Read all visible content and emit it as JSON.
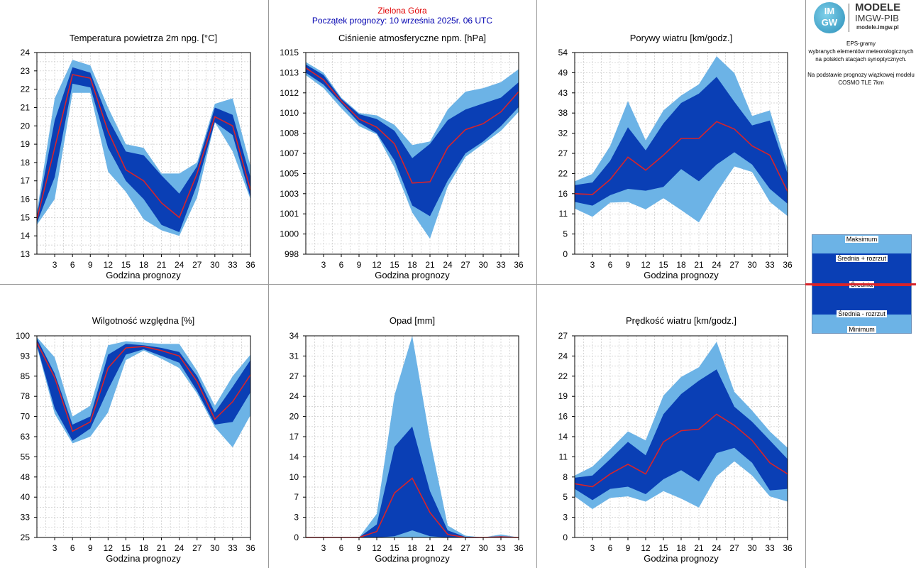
{
  "header": {
    "station": "Zielona Góra",
    "forecast_start": "Początek prognozy: 10 września 2025r. 06 UTC"
  },
  "logo": {
    "mark": "IM GW",
    "title": "MODELE",
    "subtitle": "IMGW-PIB",
    "url": "modele.imgw.pl"
  },
  "sidebar": {
    "lines": [
      "EPS-gramy",
      "wybranych elementów meteorologicznych",
      "na polskich stacjach  synoptycznych.",
      "",
      "Na podstawie prognozy wiązkowej modelu",
      "COSMO TLE 7km"
    ]
  },
  "legend": {
    "max": "Maksimum",
    "mean_plus": "Średnia + rozrzut",
    "mean": "Średnia",
    "mean_minus": "Średnia - rozrzut",
    "min": "Minimum"
  },
  "colors": {
    "outer_band": "#6cb3e6",
    "inner_band": "#0a3fb5",
    "mean_line": "#d8232a",
    "grid": "#c8c8c8"
  },
  "chart_data": [
    {
      "type": "area",
      "title": "Temperatura powietrza 2m npg. [°C]",
      "xlabel": "Godzina prognozy",
      "x": [
        0,
        3,
        6,
        9,
        12,
        15,
        18,
        21,
        24,
        27,
        30,
        33,
        36
      ],
      "x_ticks": [
        "3",
        "6",
        "9",
        "12",
        "15",
        "18",
        "21",
        "24",
        "27",
        "30",
        "33",
        "36"
      ],
      "ylim": [
        13,
        24
      ],
      "y_ticks": [
        "13",
        "14",
        "15",
        "16",
        "17",
        "18",
        "19",
        "20",
        "21",
        "22",
        "23",
        "24"
      ],
      "grid": true,
      "max": [
        15.3,
        21.5,
        23.6,
        23.3,
        21.0,
        19.0,
        18.8,
        17.4,
        17.4,
        18.0,
        21.2,
        21.5,
        17.8
      ],
      "mean_plus": [
        15.1,
        20.3,
        23.2,
        22.9,
        20.4,
        18.6,
        18.4,
        17.3,
        16.3,
        17.8,
        21.0,
        20.6,
        17.2
      ],
      "mean": [
        14.9,
        18.8,
        22.8,
        22.6,
        19.7,
        17.6,
        17.0,
        15.8,
        15.0,
        17.4,
        20.5,
        20.0,
        16.5
      ],
      "mean_minus": [
        14.7,
        17.2,
        22.3,
        22.1,
        18.8,
        17.0,
        16.0,
        14.6,
        14.2,
        16.8,
        20.2,
        19.5,
        16.1
      ],
      "min": [
        14.6,
        16.0,
        21.8,
        21.8,
        17.5,
        16.4,
        14.9,
        14.3,
        14.0,
        16.1,
        20.2,
        18.6,
        16.0
      ]
    },
    {
      "type": "area",
      "title": "Ciśnienie atmosferyczne npm. [hPa]",
      "xlabel": "Godzina prognozy",
      "x": [
        0,
        3,
        6,
        9,
        12,
        15,
        18,
        21,
        24,
        27,
        30,
        33,
        36
      ],
      "x_ticks": [
        "3",
        "6",
        "9",
        "12",
        "15",
        "18",
        "21",
        "24",
        "27",
        "30",
        "33",
        "36"
      ],
      "ylim": [
        998,
        1015
      ],
      "y_ticks": [
        "998",
        "1000",
        "1001",
        "1003",
        "1005",
        "1007",
        "1008",
        "1010",
        "1012",
        "1013",
        "1015"
      ],
      "grid": true,
      "max": [
        1014.2,
        1013.3,
        1011.2,
        1009.9,
        1009.7,
        1008.9,
        1007.2,
        1007.5,
        1010.2,
        1011.7,
        1012.0,
        1012.5,
        1013.6
      ],
      "mean_plus": [
        1014.0,
        1013.1,
        1011.1,
        1009.8,
        1009.4,
        1008.4,
        1006.1,
        1007.3,
        1009.3,
        1010.2,
        1010.7,
        1011.2,
        1012.5
      ],
      "mean": [
        1013.7,
        1012.7,
        1010.9,
        1009.4,
        1008.7,
        1007.3,
        1004.0,
        1004.1,
        1007.0,
        1008.5,
        1009.0,
        1010.0,
        1011.7
      ],
      "mean_minus": [
        1013.3,
        1012.3,
        1010.7,
        1009.1,
        1008.2,
        1005.9,
        1002.1,
        1001.2,
        1004.2,
        1006.5,
        1007.5,
        1008.8,
        1010.4
      ],
      "min": [
        1013.1,
        1012.0,
        1010.3,
        1008.8,
        1008.1,
        1005.3,
        1001.5,
        999.3,
        1003.7,
        1006.2,
        1007.3,
        1008.4,
        1010.0
      ]
    },
    {
      "type": "area",
      "title": "Porywy wiatru [km/godz.]",
      "xlabel": "Godzina prognozy",
      "x": [
        0,
        3,
        6,
        9,
        12,
        15,
        18,
        21,
        24,
        27,
        30,
        33,
        36
      ],
      "x_ticks": [
        "3",
        "6",
        "9",
        "12",
        "15",
        "18",
        "21",
        "24",
        "27",
        "30",
        "33",
        "36"
      ],
      "ylim": [
        0,
        54
      ],
      "y_ticks": [
        "0",
        "5",
        "11",
        "16",
        "22",
        "27",
        "32",
        "38",
        "43",
        "49",
        "54"
      ],
      "grid": true,
      "max": [
        19.5,
        21.5,
        29.0,
        41.0,
        30.5,
        38.5,
        42.5,
        45.5,
        53.0,
        48.5,
        37.0,
        38.5,
        23.0
      ],
      "mean_plus": [
        18.5,
        19.2,
        25.0,
        34.0,
        27.8,
        35.0,
        40.5,
        43.0,
        47.5,
        40.8,
        34.5,
        35.8,
        21.5
      ],
      "mean": [
        16.2,
        16.0,
        20.0,
        26.0,
        22.5,
        26.5,
        31.0,
        31.0,
        35.5,
        33.5,
        29.0,
        26.5,
        16.8
      ],
      "mean_minus": [
        14.0,
        13.0,
        15.8,
        17.5,
        17.0,
        18.0,
        22.8,
        19.5,
        24.0,
        27.3,
        24.0,
        17.5,
        13.5
      ],
      "min": [
        12.2,
        10.0,
        13.8,
        14.0,
        12.0,
        15.0,
        11.8,
        8.5,
        16.5,
        23.5,
        22.0,
        14.0,
        10.2
      ]
    },
    {
      "type": "area",
      "title": "Wilgotność względna [%]",
      "xlabel": "Godzina prognozy",
      "x": [
        0,
        3,
        6,
        9,
        12,
        15,
        18,
        21,
        24,
        27,
        30,
        33,
        36
      ],
      "x_ticks": [
        "3",
        "6",
        "9",
        "12",
        "15",
        "18",
        "21",
        "24",
        "27",
        "30",
        "33",
        "36"
      ],
      "ylim": [
        25,
        100
      ],
      "y_ticks": [
        "25",
        "33",
        "40",
        "48",
        "55",
        "63",
        "70",
        "78",
        "85",
        "93",
        "100"
      ],
      "grid": true,
      "max": [
        99.5,
        92.0,
        70.0,
        74.0,
        96.5,
        98.0,
        97.5,
        97.0,
        97.0,
        87.0,
        74.0,
        85.0,
        93.0
      ],
      "mean_plus": [
        99.0,
        86.0,
        67.0,
        70.0,
        93.0,
        97.0,
        96.5,
        95.5,
        94.0,
        85.0,
        71.5,
        81.0,
        91.0
      ],
      "mean": [
        97.5,
        84.5,
        64.5,
        68.0,
        88.0,
        95.5,
        96.0,
        94.5,
        92.5,
        83.0,
        69.0,
        75.5,
        85.5
      ],
      "mean_minus": [
        96.5,
        73.0,
        61.0,
        65.5,
        80.0,
        93.0,
        95.0,
        92.5,
        90.0,
        79.5,
        67.0,
        68.0,
        79.0
      ],
      "min": [
        96.0,
        71.0,
        60.0,
        62.5,
        71.5,
        91.0,
        94.5,
        91.5,
        88.0,
        78.5,
        66.0,
        58.5,
        70.5
      ]
    },
    {
      "type": "area",
      "title": "Opad [mm]",
      "xlabel": "Godzina prognozy",
      "x": [
        0,
        3,
        6,
        9,
        12,
        15,
        18,
        21,
        24,
        27,
        30,
        33,
        36
      ],
      "x_ticks": [
        "3",
        "6",
        "9",
        "12",
        "15",
        "18",
        "21",
        "24",
        "27",
        "30",
        "33",
        "36"
      ],
      "ylim": [
        0,
        34
      ],
      "y_ticks": [
        "0",
        "3",
        "7",
        "10",
        "14",
        "17",
        "20",
        "24",
        "27",
        "31",
        "34"
      ],
      "grid": true,
      "max": [
        0,
        0,
        0,
        0,
        4.0,
        24.0,
        34.0,
        16.5,
        2.0,
        0.3,
        0,
        0.5,
        0
      ],
      "mean_plus": [
        0,
        0,
        0,
        0,
        2.2,
        15.3,
        18.7,
        7.8,
        1.2,
        0.1,
        0,
        0.2,
        0
      ],
      "mean": [
        0,
        0,
        0,
        0,
        1.0,
        7.5,
        10.0,
        4.2,
        0.5,
        0,
        0,
        0.1,
        0
      ],
      "mean_minus": [
        0,
        0,
        0,
        0,
        0,
        0.2,
        1.2,
        0.2,
        0,
        0,
        0,
        0,
        0
      ],
      "min": [
        0,
        0,
        0,
        0,
        0,
        0,
        0,
        0,
        0,
        0,
        0,
        0,
        0
      ]
    },
    {
      "type": "area",
      "title": "Prędkość wiatru [km/godz.]",
      "xlabel": "Godzina prognozy",
      "x": [
        0,
        3,
        6,
        9,
        12,
        15,
        18,
        21,
        24,
        27,
        30,
        33,
        36
      ],
      "x_ticks": [
        "3",
        "6",
        "9",
        "12",
        "15",
        "18",
        "21",
        "24",
        "27",
        "30",
        "33",
        "36"
      ],
      "ylim": [
        0,
        27
      ],
      "y_ticks": [
        "0",
        "3",
        "5",
        "8",
        "11",
        "14",
        "16",
        "19",
        "22",
        "24",
        "27"
      ],
      "grid": true,
      "max": [
        8.3,
        9.5,
        11.8,
        14.2,
        13.0,
        19.0,
        21.5,
        22.8,
        26.2,
        19.5,
        17.0,
        14.2,
        12.0
      ],
      "mean_plus": [
        8.0,
        8.3,
        10.5,
        12.8,
        11.0,
        16.5,
        19.2,
        21.0,
        22.5,
        17.5,
        15.5,
        13.0,
        10.5
      ],
      "mean": [
        7.2,
        6.8,
        8.5,
        9.8,
        8.5,
        12.8,
        14.3,
        14.5,
        16.5,
        15.0,
        13.0,
        10.0,
        8.5
      ],
      "mean_minus": [
        6.5,
        5.0,
        6.5,
        6.8,
        5.8,
        7.8,
        9.0,
        7.5,
        11.3,
        12.0,
        10.0,
        6.3,
        6.5
      ],
      "min": [
        5.5,
        3.8,
        5.3,
        5.5,
        4.8,
        6.2,
        5.2,
        4.0,
        8.2,
        10.2,
        8.3,
        5.5,
        4.8
      ]
    }
  ]
}
